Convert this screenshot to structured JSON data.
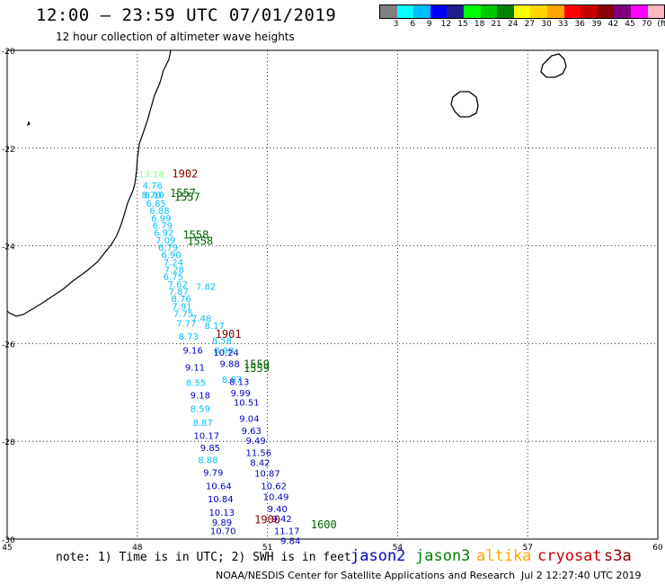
{
  "header": {
    "title": "12:00 – 23:59 UTC 07/01/2019",
    "subtitle": "12 hour collection of altimeter wave heights"
  },
  "colorbar": {
    "colors": [
      "#7f7f7f",
      "#00ffff",
      "#00bfff",
      "#0000ff",
      "#1e1e8c",
      "#00ff00",
      "#00c800",
      "#008000",
      "#ffff00",
      "#ffd700",
      "#ffa500",
      "#ff0000",
      "#c80000",
      "#8b0000",
      "#800080",
      "#ff00ff",
      "#ffb6c1",
      "#000000"
    ],
    "labels": [
      "3",
      "6",
      "9",
      "12",
      "15",
      "18",
      "21",
      "24",
      "27",
      "30",
      "33",
      "36",
      "39",
      "42",
      "45",
      "70",
      "(ft)"
    ]
  },
  "axes": {
    "lon_ticks": [
      "45",
      "48",
      "51",
      "54",
      "57",
      "60"
    ],
    "lat_ticks": [
      "-20",
      "-22",
      "-24",
      "-26",
      "-28",
      "-30"
    ]
  },
  "mission_colors": {
    "jason2": "#0000c8",
    "jason3": "#008000",
    "altika": "#ffa500",
    "cryosat": "#c80000",
    "s3a": "#8b0000",
    "ltcyan": "#00bfff",
    "green_label": "#006400"
  },
  "missions": {
    "jason2": "jason2",
    "jason3": "jason3",
    "altika": "altika",
    "cryosat": "cryosat",
    "s3a": "s3a"
  },
  "pass_labels": [
    {
      "text": "1902",
      "lon": 48.8,
      "lat": -22.6,
      "mission": "s3a"
    },
    {
      "text": "1557",
      "lon": 48.75,
      "lat": -23.0,
      "mission": "jason3"
    },
    {
      "text": "1557",
      "lon": 48.85,
      "lat": -23.08,
      "mission": "jason3"
    },
    {
      "text": "1558",
      "lon": 49.05,
      "lat": -23.85,
      "mission": "jason3"
    },
    {
      "text": "1558",
      "lon": 49.15,
      "lat": -23.98,
      "mission": "jason3"
    },
    {
      "text": "1901",
      "lon": 49.8,
      "lat": -25.88,
      "mission": "s3a"
    },
    {
      "text": "1559",
      "lon": 50.45,
      "lat": -26.5,
      "mission": "jason3"
    },
    {
      "text": "1559",
      "lon": 50.45,
      "lat": -26.58,
      "mission": "jason3"
    },
    {
      "text": "1900",
      "lon": 50.7,
      "lat": -29.68,
      "mission": "s3a"
    },
    {
      "text": "1600",
      "lon": 52.0,
      "lat": -29.78,
      "mission": "jason3"
    }
  ],
  "track_a": {
    "mission": "ltcyan",
    "values": [
      {
        "text": "13.18",
        "lon": 48.03,
        "lat": -22.6,
        "color": "#7fff7f"
      },
      {
        "text": "4.76",
        "lon": 48.12,
        "lat": -22.83
      },
      {
        "text": "8.70",
        "lon": 48.1,
        "lat": -23.02
      },
      {
        "text": "8.10",
        "lon": 48.16,
        "lat": -23.02
      },
      {
        "text": "6.85",
        "lon": 48.2,
        "lat": -23.2
      },
      {
        "text": "6.88",
        "lon": 48.28,
        "lat": -23.35
      },
      {
        "text": "6.99",
        "lon": 48.32,
        "lat": -23.5
      },
      {
        "text": "6.79",
        "lon": 48.35,
        "lat": -23.65
      },
      {
        "text": "6.92",
        "lon": 48.38,
        "lat": -23.8
      },
      {
        "text": "7.09",
        "lon": 48.42,
        "lat": -23.95
      },
      {
        "text": "6.79",
        "lon": 48.48,
        "lat": -24.1
      },
      {
        "text": "6.90",
        "lon": 48.55,
        "lat": -24.25
      },
      {
        "text": "7.24",
        "lon": 48.6,
        "lat": -24.4
      },
      {
        "text": "7.28",
        "lon": 48.62,
        "lat": -24.55
      },
      {
        "text": "6.75",
        "lon": 48.6,
        "lat": -24.7
      },
      {
        "text": "7.62",
        "lon": 48.7,
        "lat": -24.85
      },
      {
        "text": "7.87",
        "lon": 48.72,
        "lat": -25.0
      },
      {
        "text": "8.76",
        "lon": 48.78,
        "lat": -25.15
      },
      {
        "text": "7.91",
        "lon": 48.8,
        "lat": -25.3
      },
      {
        "text": "7.75",
        "lon": 48.83,
        "lat": -25.45
      },
      {
        "text": "7.77",
        "lon": 48.9,
        "lat": -25.65
      },
      {
        "text": "8.73",
        "lon": 48.95,
        "lat": -25.92
      },
      {
        "text": "8.55",
        "lon": 49.12,
        "lat": -26.87
      },
      {
        "text": "8.59",
        "lon": 49.22,
        "lat": -27.4
      },
      {
        "text": "8.87",
        "lon": 49.28,
        "lat": -27.68
      },
      {
        "text": "8.88",
        "lon": 49.4,
        "lat": -28.45
      },
      {
        "text": "7.82",
        "lon": 49.35,
        "lat": -24.9
      },
      {
        "text": "7.48",
        "lon": 49.25,
        "lat": -25.55
      },
      {
        "text": "8.17",
        "lon": 49.55,
        "lat": -25.7
      },
      {
        "text": "8.58",
        "lon": 49.72,
        "lat": -26.0
      },
      {
        "text": "8.98",
        "lon": 49.77,
        "lat": -26.2
      },
      {
        "text": "8.87",
        "lon": 49.95,
        "lat": -26.8
      }
    ]
  },
  "track_b": {
    "mission": "jason2",
    "values": [
      {
        "text": "9.16",
        "lon": 49.05,
        "lat": -26.2
      },
      {
        "text": "9.11",
        "lon": 49.1,
        "lat": -26.55
      },
      {
        "text": "9.18",
        "lon": 49.22,
        "lat": -27.12
      },
      {
        "text": "10.17",
        "lon": 49.3,
        "lat": -27.95
      },
      {
        "text": "9.85",
        "lon": 49.45,
        "lat": -28.2
      },
      {
        "text": "9.79",
        "lon": 49.52,
        "lat": -28.7
      },
      {
        "text": "10.64",
        "lon": 49.58,
        "lat": -28.98
      },
      {
        "text": "10.84",
        "lon": 49.62,
        "lat": -29.25
      },
      {
        "text": "10.13",
        "lon": 49.65,
        "lat": -29.52
      },
      {
        "text": "9.89",
        "lon": 49.72,
        "lat": -29.72
      },
      {
        "text": "10.70",
        "lon": 49.68,
        "lat": -29.9
      },
      {
        "text": "10.24",
        "lon": 49.75,
        "lat": -26.25
      },
      {
        "text": "9.88",
        "lon": 49.9,
        "lat": -26.48
      },
      {
        "text": "8.13",
        "lon": 50.12,
        "lat": -26.85
      },
      {
        "text": "9.99",
        "lon": 50.15,
        "lat": -27.08
      },
      {
        "text": "10.51",
        "lon": 50.22,
        "lat": -27.27
      },
      {
        "text": "9.04",
        "lon": 50.35,
        "lat": -27.6
      },
      {
        "text": "9.63",
        "lon": 50.4,
        "lat": -27.85
      },
      {
        "text": "9.49",
        "lon": 50.5,
        "lat": -28.05
      },
      {
        "text": "11.56",
        "lon": 50.5,
        "lat": -28.3
      },
      {
        "text": "8.42",
        "lon": 50.6,
        "lat": -28.5
      },
      {
        "text": "10.87",
        "lon": 50.7,
        "lat": -28.72
      },
      {
        "text": "10.62",
        "lon": 50.85,
        "lat": -28.98
      },
      {
        "text": "10.49",
        "lon": 50.9,
        "lat": -29.2
      },
      {
        "text": "9.40",
        "lon": 51.0,
        "lat": -29.45
      },
      {
        "text": "9.42",
        "lon": 51.1,
        "lat": -29.65
      },
      {
        "text": "11.17",
        "lon": 51.15,
        "lat": -29.9
      },
      {
        "text": "9.84",
        "lon": 51.3,
        "lat": -30.1
      }
    ]
  },
  "footer": {
    "note": "note: 1) Time is in UTC; 2) SWH is in feet",
    "credit": "NOAA/NESDIS Center for Satellite Applications and Research",
    "timestamp": "Jul  2 12:27:40 UTC 2019"
  }
}
